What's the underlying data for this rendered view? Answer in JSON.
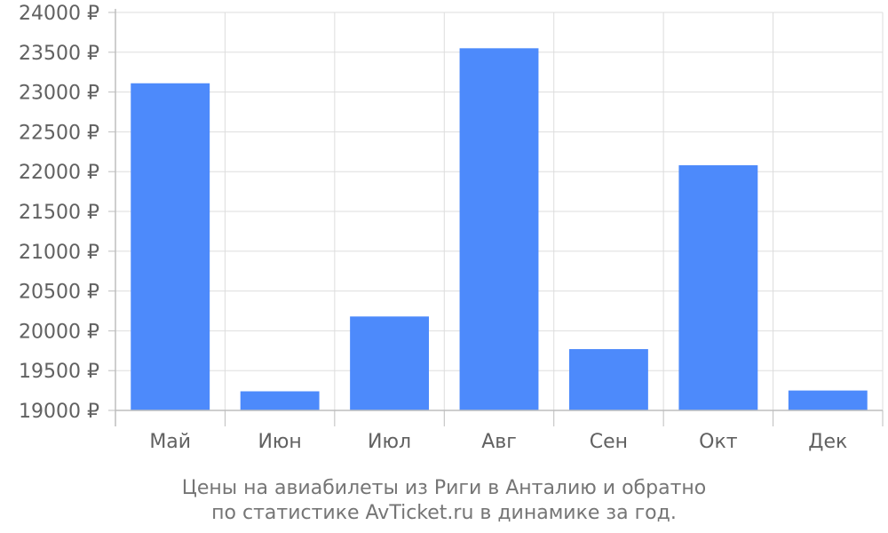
{
  "chart_data": {
    "type": "bar",
    "categories": [
      "Май",
      "Июн",
      "Июл",
      "Авг",
      "Сен",
      "Окт",
      "Дек"
    ],
    "values": [
      23110,
      19240,
      20180,
      23550,
      19770,
      22080,
      19250
    ],
    "ylim": [
      19000,
      24000
    ],
    "yticks": [
      19000,
      19500,
      20000,
      20500,
      21000,
      21500,
      22000,
      22500,
      23000,
      23500,
      24000
    ],
    "ytick_suffix": " ₽",
    "grid": true,
    "bar_color": "#4d8afb",
    "grid_color": "#dddddd",
    "axis_color": "#bdbdbd",
    "caption": [
      "Цены на авиабилеты из Риги в Анталию и обратно",
      "по статистике AvTicket.ru в динамике за год."
    ]
  }
}
